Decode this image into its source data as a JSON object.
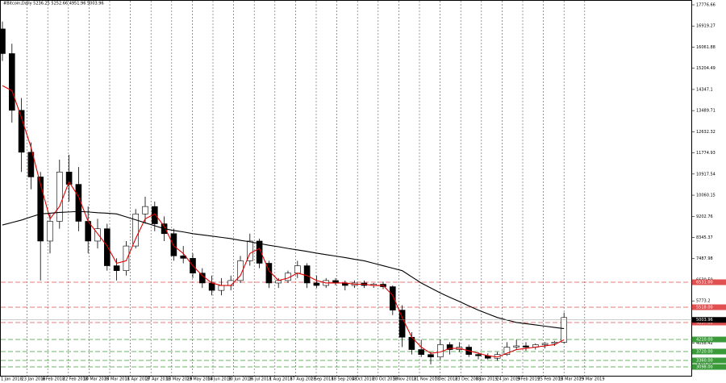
{
  "chart_data": {
    "type": "candlestick",
    "title": "#Bitcoin,Daily  5236.25 5252.66 4951.96 5003.96",
    "ylim": [
      2772.28,
      17776.66
    ],
    "yticks": [
      17776.66,
      16919.27,
      16061.88,
      15204.49,
      14347.1,
      13489.71,
      12632.32,
      11774.93,
      10917.54,
      10060.15,
      9202.76,
      8345.37,
      7487.98,
      6630.59,
      5773.2,
      4915.81,
      4058.42,
      3201.03
    ],
    "x_labels": [
      "1 Jan 2018",
      "23 Jan 2018",
      "6 Feb 2018",
      "22 Feb 2018",
      "10 Mar 2018",
      "26 Mar 2018",
      "11 Apr 2018",
      "27 Apr 2018",
      "13 May 2018",
      "29 May 2018",
      "14 Jun 2018",
      "30 Jun 2018",
      "16 Jul 2018",
      "1 Aug 2018",
      "17 Aug 2018",
      "2 Sep 2018",
      "18 Sep 2018",
      "4 Oct 2018",
      "20 Oct 2018",
      "5 Nov 2018",
      "21 Nov 2018",
      "7 Dec 2018",
      "23 Dec 2018",
      "8 Jan 2019",
      "24 Jan 2019",
      "9 Feb 2019",
      "25 Feb 2019",
      "13 Mar 2019",
      "29 Mar 2019"
    ],
    "open": [
      16800,
      15800,
      13500,
      11800,
      10800,
      8200,
      9000,
      11000,
      10500,
      9000,
      8200,
      8700,
      7200,
      7000,
      8000,
      9300,
      9600,
      8900,
      8500,
      7600,
      7500,
      6900,
      6500,
      6200,
      6400,
      6600,
      7400,
      8200,
      7300,
      6500,
      6600,
      6900,
      7200,
      6500,
      6400,
      6600,
      6500,
      6400,
      6500,
      6400,
      6450,
      6350,
      5400,
      4300,
      3800,
      3600,
      3500,
      4000,
      3800,
      3900,
      3600,
      3550,
      3450,
      3600,
      3900,
      3950,
      3900,
      4000,
      4050,
      4100
    ],
    "high": [
      17100,
      16200,
      14000,
      12200,
      11000,
      9300,
      11500,
      11700,
      11200,
      9600,
      9100,
      8900,
      7500,
      8200,
      9500,
      10000,
      9800,
      9200,
      8700,
      8000,
      7700,
      7100,
      6800,
      6700,
      6800,
      7600,
      8500,
      8300,
      7400,
      6700,
      7000,
      7400,
      7300,
      6800,
      6700,
      6700,
      6600,
      6600,
      6600,
      6500,
      6550,
      6400,
      5600,
      4500,
      4200,
      3700,
      4200,
      4100,
      4100,
      4000,
      3700,
      3650,
      3700,
      4100,
      4200,
      4100,
      4050,
      4100,
      4150,
      5300
    ],
    "low": [
      15500,
      13000,
      11000,
      10300,
      6600,
      7700,
      8700,
      9800,
      8600,
      7700,
      7900,
      7000,
      6600,
      6800,
      7900,
      8900,
      8600,
      8200,
      7400,
      7300,
      6700,
      6300,
      6000,
      6000,
      6200,
      6500,
      7200,
      7100,
      6300,
      6300,
      6500,
      6700,
      6300,
      6300,
      6300,
      6400,
      6200,
      6300,
      6300,
      6300,
      6250,
      5200,
      3900,
      3600,
      3500,
      3200,
      3400,
      3600,
      3700,
      3500,
      3400,
      3400,
      3350,
      3550,
      3800,
      3750,
      3800,
      3850,
      3950,
      4050
    ],
    "close": [
      15800,
      13500,
      11800,
      10800,
      8200,
      9000,
      11000,
      10500,
      9000,
      8200,
      8700,
      7200,
      7000,
      8000,
      9300,
      9600,
      8900,
      8500,
      7600,
      7500,
      6900,
      6500,
      6200,
      6400,
      6600,
      7400,
      8200,
      7300,
      6500,
      6600,
      6900,
      7200,
      6500,
      6400,
      6600,
      6500,
      6400,
      6500,
      6400,
      6450,
      6350,
      5400,
      4300,
      3800,
      3600,
      3500,
      4000,
      3800,
      3900,
      3600,
      3550,
      3450,
      3600,
      3900,
      3950,
      3900,
      4000,
      4050,
      4100,
      5100
    ],
    "series": [
      {
        "color": "#e00000",
        "values": [
          14500,
          14300,
          13200,
          12000,
          10500,
          9100,
          9600,
          10600,
          10000,
          9000,
          8500,
          8000,
          7300,
          7400,
          8300,
          9100,
          9300,
          8800,
          8000,
          7700,
          7200,
          6800,
          6500,
          6400,
          6400,
          6800,
          7700,
          7900,
          7000,
          6600,
          6700,
          6900,
          6800,
          6600,
          6500,
          6500,
          6500,
          6450,
          6450,
          6400,
          6400,
          6000,
          5100,
          4300,
          3900,
          3650,
          3700,
          3850,
          3850,
          3750,
          3650,
          3550,
          3500,
          3650,
          3800,
          3850,
          3900,
          3950,
          4000,
          4200
        ]
      },
      {
        "color": "#000000",
        "values": [
          8850,
          8950,
          9050,
          9180,
          9300,
          9330,
          9360,
          9380,
          9400,
          9380,
          9350,
          9330,
          9300,
          9180,
          9060,
          8940,
          8820,
          8700,
          8630,
          8570,
          8500,
          8450,
          8400,
          8350,
          8300,
          8230,
          8170,
          8100,
          8030,
          7970,
          7900,
          7840,
          7780,
          7710,
          7650,
          7590,
          7530,
          7460,
          7400,
          7300,
          7200,
          7100,
          7000,
          6750,
          6500,
          6300,
          6100,
          5920,
          5750,
          5570,
          5400,
          5250,
          5100,
          5000,
          4900,
          4850,
          4800,
          4750,
          4700,
          4650
        ]
      }
    ],
    "levels": [
      {
        "value": 6531,
        "label": "6531.00",
        "color": "#e05050"
      },
      {
        "value": 5518,
        "label": "5518.00",
        "color": "#e05050"
      },
      {
        "value": 4897,
        "label": "4897.00",
        "color": "#e05050"
      },
      {
        "value": 4210,
        "label": "4210.00",
        "color": "#3a9a3a"
      },
      {
        "value": 3720,
        "label": "3720.00",
        "color": "#3a9a3a"
      },
      {
        "value": 3360,
        "label": "3360.00",
        "color": "#3a9a3a"
      },
      {
        "value": 3098,
        "label": "3098.00",
        "color": "#3a9a3a"
      }
    ],
    "current": {
      "value": 5003.96,
      "label": "5003.96",
      "color": "#000000"
    }
  }
}
